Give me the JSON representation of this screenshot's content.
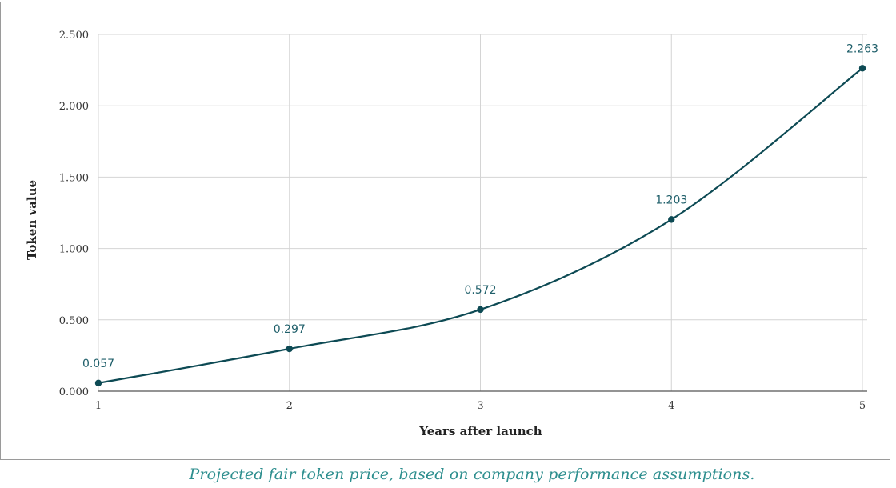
{
  "caption": "Projected fair token price, based on company performance assumptions.",
  "chart_data": {
    "type": "line",
    "title": "",
    "xlabel": "Years after launch",
    "ylabel": "Token value",
    "x": [
      1,
      2,
      3,
      4,
      5
    ],
    "x_tick_labels": [
      "1",
      "2",
      "3",
      "4",
      "5"
    ],
    "y_tick_labels": [
      "0.000",
      "0.500",
      "1.000",
      "1.500",
      "2.000",
      "2.500"
    ],
    "ylim": [
      0,
      2.5
    ],
    "y_ticks": [
      0,
      0.5,
      1.0,
      1.5,
      2.0,
      2.5
    ],
    "grid": true,
    "series": [
      {
        "values": [
          0.057,
          0.297,
          0.572,
          1.203,
          2.263
        ],
        "data_labels": [
          "0.057",
          "0.297",
          "0.572",
          "1.203",
          "2.263"
        ],
        "color": "#0d4a54",
        "smooth": true
      }
    ],
    "colors": {
      "grid": "#d4d4d4",
      "axis": "#555555",
      "tick_text": "#333333",
      "label_text": "#222222",
      "data_label": "#1f5f6a"
    }
  }
}
